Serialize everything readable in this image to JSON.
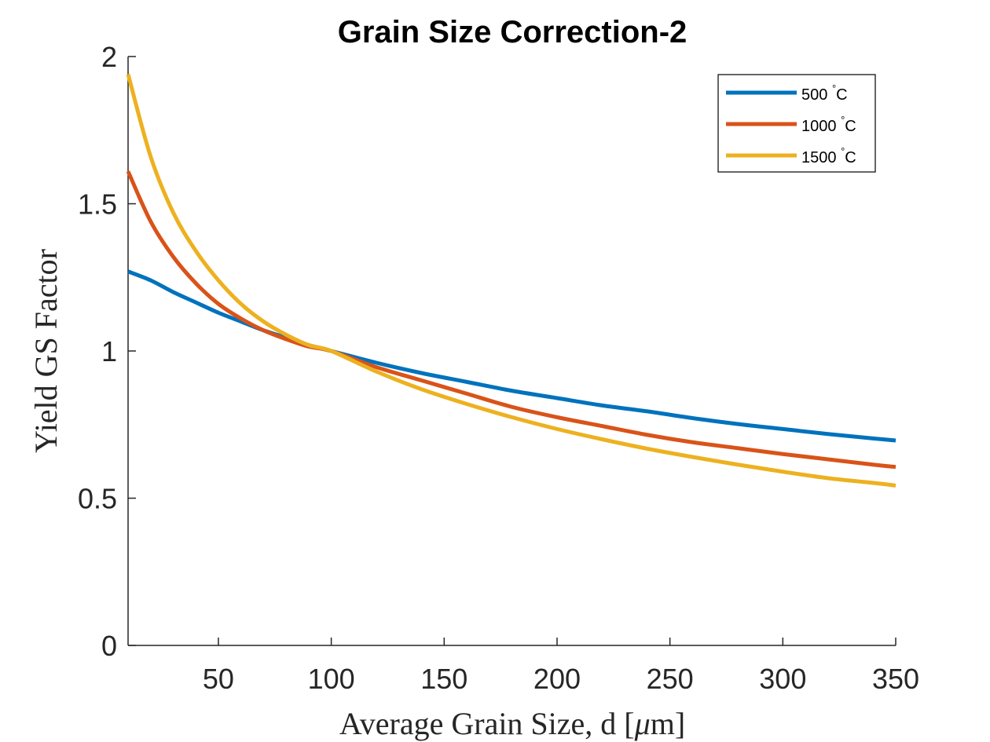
{
  "chart_data": {
    "type": "line",
    "title": "Grain Size Correction-2",
    "xlabel": "Average Grain Size, d [μm]",
    "ylabel": "Yield GS Factor",
    "xlim": [
      10,
      350
    ],
    "ylim": [
      0,
      2
    ],
    "xticks": [
      50,
      100,
      150,
      200,
      250,
      300,
      350
    ],
    "xtick_labels": [
      "50",
      "100",
      "150",
      "200",
      "250",
      "300",
      "350"
    ],
    "yticks": [
      0,
      0.5,
      1,
      1.5,
      2
    ],
    "ytick_labels": [
      "0",
      "0.5",
      "1",
      "1.5",
      "2"
    ],
    "grid": false,
    "legend_position": "top-right",
    "series": [
      {
        "name": "500 °C",
        "legend_value": "500",
        "legend_unit": "C",
        "legend_sup": "°",
        "color": "#0072BD",
        "x": [
          10,
          20,
          30,
          40,
          50,
          60,
          70,
          80,
          90,
          100,
          120,
          140,
          160,
          180,
          200,
          220,
          240,
          260,
          280,
          300,
          320,
          340,
          350
        ],
        "y": [
          1.27,
          1.24,
          1.2,
          1.165,
          1.13,
          1.1,
          1.07,
          1.045,
          1.02,
          1.0,
          0.96,
          0.925,
          0.895,
          0.865,
          0.84,
          0.815,
          0.795,
          0.772,
          0.752,
          0.735,
          0.718,
          0.703,
          0.696
        ]
      },
      {
        "name": "1000 °C",
        "legend_value": "1000",
        "legend_unit": "C",
        "legend_sup": "°",
        "color": "#D95319",
        "x": [
          10,
          20,
          30,
          40,
          50,
          60,
          70,
          80,
          90,
          100,
          120,
          140,
          160,
          180,
          200,
          220,
          240,
          260,
          280,
          300,
          320,
          340,
          350
        ],
        "y": [
          1.61,
          1.44,
          1.32,
          1.23,
          1.16,
          1.11,
          1.07,
          1.04,
          1.015,
          1.0,
          0.945,
          0.9,
          0.855,
          0.81,
          0.775,
          0.745,
          0.715,
          0.69,
          0.67,
          0.65,
          0.632,
          0.614,
          0.606
        ]
      },
      {
        "name": "1500 °C",
        "legend_value": "1500",
        "legend_unit": "C",
        "legend_sup": "°",
        "color": "#EDB120",
        "x": [
          10,
          20,
          30,
          40,
          50,
          60,
          70,
          80,
          90,
          100,
          120,
          140,
          160,
          180,
          200,
          220,
          240,
          260,
          280,
          300,
          320,
          340,
          350
        ],
        "y": [
          1.94,
          1.66,
          1.47,
          1.34,
          1.24,
          1.16,
          1.1,
          1.055,
          1.02,
          1.0,
          0.93,
          0.87,
          0.82,
          0.775,
          0.735,
          0.7,
          0.668,
          0.64,
          0.614,
          0.59,
          0.568,
          0.552,
          0.543
        ]
      }
    ]
  }
}
